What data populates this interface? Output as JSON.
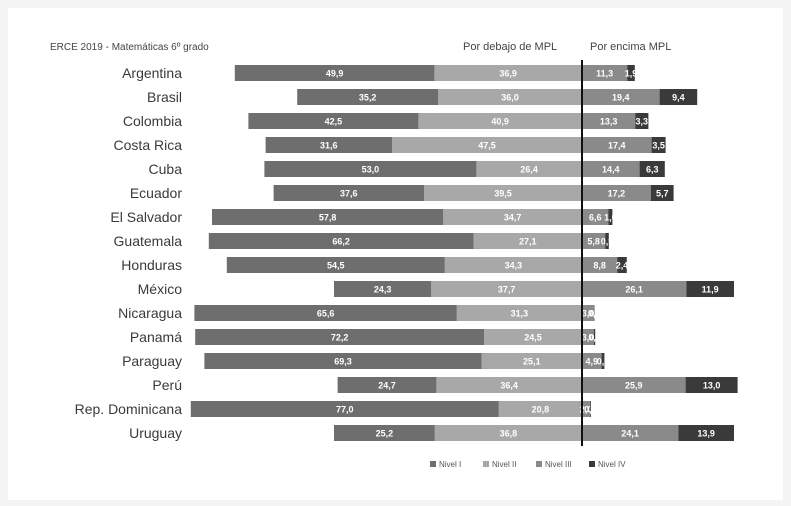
{
  "chart_data": {
    "type": "bar",
    "orientation": "horizontal",
    "stacked": "diverging",
    "title": "ERCE 2019 - Matemáticas 6º grado",
    "header_below": "Por debajo de MPL",
    "header_above": "Por encima MPL",
    "categories": [
      "Argentina",
      "Brasil",
      "Colombia",
      "Costa Rica",
      "Cuba",
      "Ecuador",
      "El Salvador",
      "Guatemala",
      "Honduras",
      "México",
      "Nicaragua",
      "Panamá",
      "Paraguay",
      "Perú",
      "Rep. Dominicana",
      "Uruguay"
    ],
    "series": [
      {
        "name": "Nivel I",
        "color": "#6e6e6e",
        "side": "below",
        "values": [
          49.9,
          35.2,
          42.5,
          31.6,
          53.0,
          37.6,
          57.8,
          66.2,
          54.5,
          24.3,
          65.6,
          72.2,
          69.3,
          24.7,
          77.0,
          25.2
        ],
        "labels": [
          "49,9",
          "35,2",
          "42,5",
          "31,6",
          "53,0",
          "37,6",
          "57,8",
          "66,2",
          "54,5",
          "24,3",
          "65,6",
          "72,2",
          "69,3",
          "24,7",
          "77,0",
          "25,2"
        ]
      },
      {
        "name": "Nivel II",
        "color": "#a8a8a8",
        "side": "below",
        "values": [
          36.9,
          36.0,
          40.9,
          47.5,
          26.4,
          39.5,
          34.7,
          27.1,
          34.3,
          37.7,
          31.3,
          24.5,
          25.1,
          36.4,
          20.8,
          36.8
        ],
        "labels": [
          "36,9",
          "36,0",
          "40,9",
          "47,5",
          "26,4",
          "39,5",
          "34,7",
          "27,1",
          "34,3",
          "37,7",
          "31,3",
          "24,5",
          "25,1",
          "36,4",
          "20,8",
          "36,8"
        ]
      },
      {
        "name": "Nivel III",
        "color": "#8a8a8a",
        "side": "above",
        "values": [
          11.3,
          19.4,
          13.3,
          17.4,
          14.4,
          17.2,
          6.6,
          5.8,
          8.8,
          26.1,
          3.0,
          3.0,
          4.9,
          25.9,
          2.0,
          24.1
        ],
        "labels": [
          "11,3",
          "19,4",
          "13,3",
          "17,4",
          "14,4",
          "17,2",
          "6,6",
          "5,8",
          "8,8",
          "26,1",
          "3,0",
          "3,0",
          "4,9",
          "25,9",
          "2,0",
          "24,1"
        ]
      },
      {
        "name": "Nivel IV",
        "color": "#3a3a3a",
        "side": "above",
        "values": [
          1.9,
          9.4,
          3.3,
          3.5,
          6.3,
          5.7,
          1.0,
          0.9,
          2.4,
          11.9,
          0.1,
          0.3,
          0.7,
          13.0,
          0.2,
          13.9
        ],
        "labels": [
          "1,9",
          "9,4",
          "3,3",
          "3,5",
          "6,3",
          "5,7",
          "1,0",
          "0,9",
          "2,4",
          "11,9",
          "0,1",
          "0,3",
          "0,7",
          "13,0",
          "0,2",
          "13,9"
        ]
      }
    ]
  }
}
